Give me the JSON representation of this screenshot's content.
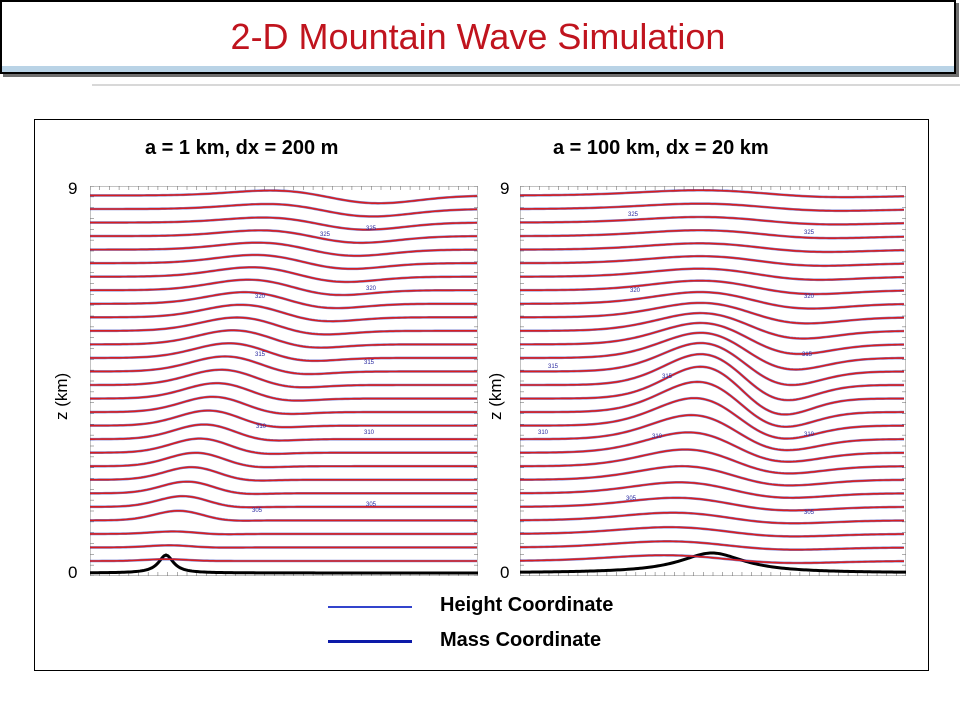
{
  "slide": {
    "title": "2-D Mountain Wave Simulation"
  },
  "colors": {
    "title": "#c0141e",
    "height_line": "#3344cc",
    "mass_line": "#0c1aa8",
    "contour": "#d81e1e",
    "terrain": "#000000"
  },
  "panels": [
    {
      "id": "left",
      "heading": "a = 1 km,  dx = 200 m",
      "ylabel": "z (km)",
      "ytick_top": "9",
      "ytick_bottom": "0",
      "contour_labels": [
        "325",
        "325",
        "320",
        "320",
        "315",
        "315",
        "310",
        "310",
        "305",
        "305"
      ]
    },
    {
      "id": "right",
      "heading": "a = 100 km, dx = 20 km",
      "ylabel": "z (km)",
      "ytick_top": "9",
      "ytick_bottom": "0",
      "contour_labels": [
        "325",
        "325",
        "320",
        "320",
        "315",
        "315",
        "315",
        "310",
        "310",
        "310",
        "305",
        "305"
      ]
    }
  ],
  "legend": [
    {
      "label": "Height Coordinate",
      "color": "#3344cc"
    },
    {
      "label": "Mass Coordinate",
      "color": "#0c1aa8"
    }
  ]
}
